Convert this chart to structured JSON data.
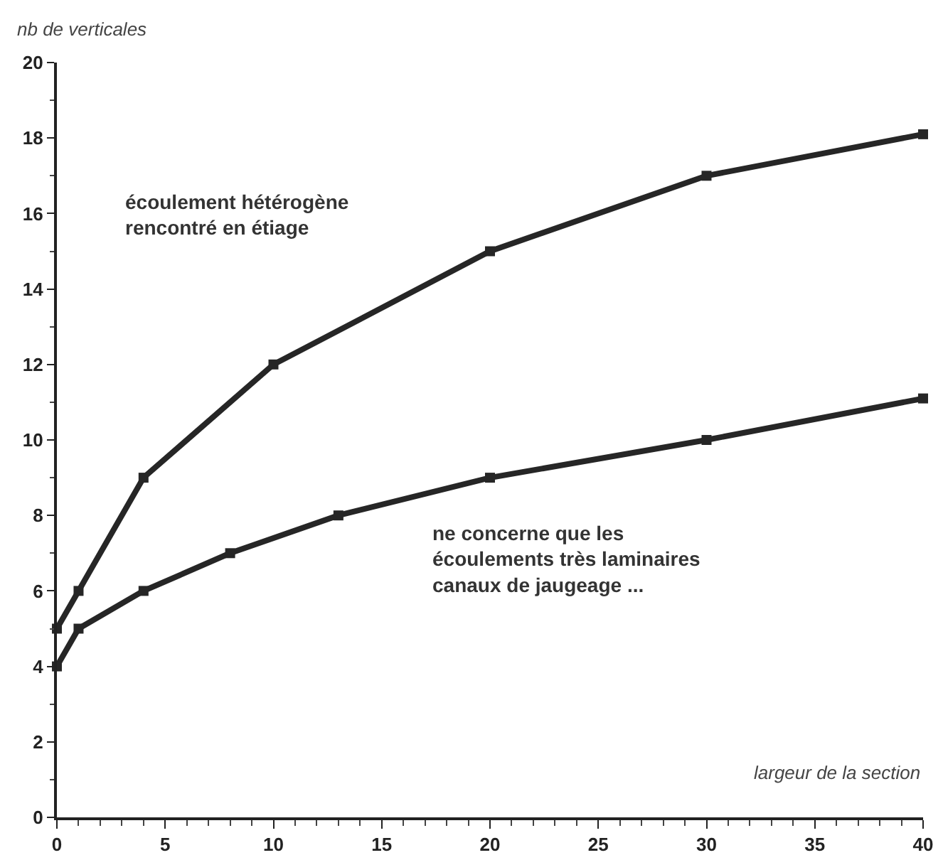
{
  "chart_data": {
    "type": "line",
    "xlabel": "largeur de la section",
    "ylabel": "nb de verticales",
    "xlim": [
      0,
      40
    ],
    "xticks": [
      0,
      5,
      10,
      15,
      20,
      25,
      30,
      35,
      40
    ],
    "ylim": [
      0,
      20
    ],
    "yticks": [
      0,
      2,
      4,
      6,
      8,
      10,
      12,
      14,
      16,
      18,
      20
    ],
    "grid": false,
    "marker": "square",
    "line_style": "solid",
    "series": [
      {
        "color": "#262626",
        "x": [
          0,
          1,
          4,
          10,
          20,
          30,
          40
        ],
        "values": [
          5,
          6,
          9,
          12,
          15,
          17,
          18.1
        ]
      },
      {
        "color": "#262626",
        "x": [
          0,
          1,
          4,
          8,
          13,
          20,
          30,
          40
        ],
        "values": [
          4,
          5,
          6,
          7,
          8,
          9,
          10,
          11.1
        ]
      }
    ],
    "annotations": [
      "écoulement hétérogène\nrencontré en étiage",
      "ne concerne que les\nécoulements très laminaires\ncanaux de jaugeage ..."
    ]
  }
}
